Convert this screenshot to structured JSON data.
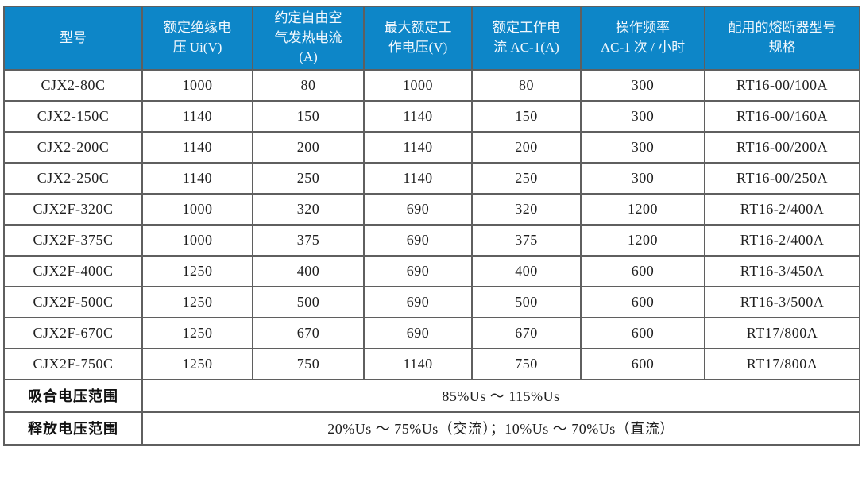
{
  "table": {
    "columns": [
      "型号",
      "额定绝缘电\n压 Ui(V)",
      "约定自由空\n气发热电流\n(A)",
      "最大额定工\n作电压(V)",
      "额定工作电\n流 AC-1(A)",
      "操作频率\nAC-1 次 / 小时",
      "配用的熔断器型号\n规格"
    ],
    "rows": [
      [
        "CJX2-80C",
        "1000",
        "80",
        "1000",
        "80",
        "300",
        "RT16-00/100A"
      ],
      [
        "CJX2-150C",
        "1140",
        "150",
        "1140",
        "150",
        "300",
        "RT16-00/160A"
      ],
      [
        "CJX2-200C",
        "1140",
        "200",
        "1140",
        "200",
        "300",
        "RT16-00/200A"
      ],
      [
        "CJX2-250C",
        "1140",
        "250",
        "1140",
        "250",
        "300",
        "RT16-00/250A"
      ],
      [
        "CJX2F-320C",
        "1000",
        "320",
        "690",
        "320",
        "1200",
        "RT16-2/400A"
      ],
      [
        "CJX2F-375C",
        "1000",
        "375",
        "690",
        "375",
        "1200",
        "RT16-2/400A"
      ],
      [
        "CJX2F-400C",
        "1250",
        "400",
        "690",
        "400",
        "600",
        "RT16-3/450A"
      ],
      [
        "CJX2F-500C",
        "1250",
        "500",
        "690",
        "500",
        "600",
        "RT16-3/500A"
      ],
      [
        "CJX2F-670C",
        "1250",
        "670",
        "690",
        "670",
        "600",
        "RT17/800A"
      ],
      [
        "CJX2F-750C",
        "1250",
        "750",
        "1140",
        "750",
        "600",
        "RT17/800A"
      ]
    ],
    "footer_rows": [
      {
        "label": "吸合电压范围",
        "value": "85%Us ～ 115%Us"
      },
      {
        "label": "释放电压范围",
        "value": "20%Us ～ 75%Us（交流）；10%Us ～ 70%Us（直流）"
      }
    ]
  },
  "colors": {
    "header_bg": "#0d86c8",
    "header_text": "#f2f8fd",
    "grid_line": "#5f5f5f",
    "body_text": "#1f1f1f"
  }
}
